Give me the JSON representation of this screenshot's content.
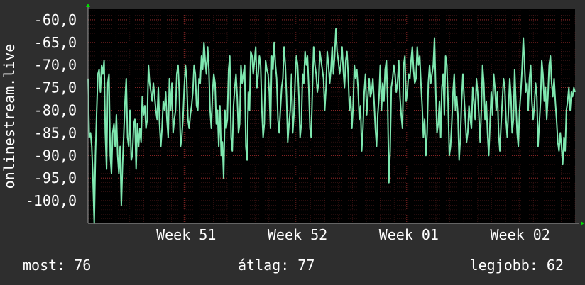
{
  "chart_data": {
    "type": "line",
    "ylabel": "onlinestream.live",
    "ylim": [
      -105,
      -57.5
    ],
    "yticks": [
      -60,
      -65,
      -70,
      -75,
      -80,
      -85,
      -90,
      -95,
      -100
    ],
    "ytick_labels": [
      "-60,0",
      "-65,0",
      "-70,0",
      "-75,0",
      "-80,0",
      "-85,0",
      "-90,0",
      "-95,0",
      "-100,0"
    ],
    "xrange": [
      0,
      35
    ],
    "xticks": [
      {
        "x": 6.9,
        "label": "Week 51"
      },
      {
        "x": 14.9,
        "label": "Week 52"
      },
      {
        "x": 22.9,
        "label": "Week 01"
      },
      {
        "x": 30.9,
        "label": "Week 02"
      }
    ],
    "grid": true,
    "colors": {
      "line": "#7fe8b0",
      "plot_bg": "#000000",
      "grid": "#7a2a2a",
      "axis": "#9a9a9a",
      "arrow": "#00e000"
    },
    "series": [
      {
        "values": [
          -73,
          -86,
          -85,
          -88,
          -95,
          -105,
          -90,
          -80,
          -72,
          -71,
          -76,
          -70,
          -72,
          -69,
          -85,
          -93,
          -74,
          -72,
          -90,
          -94,
          -85,
          -83,
          -88,
          -81,
          -90,
          -94,
          -88,
          -101,
          -92,
          -85,
          -78,
          -73,
          -86,
          -88,
          -80,
          -91,
          -90,
          -83,
          -82,
          -93,
          -83,
          -88,
          -84,
          -87,
          -77,
          -81,
          -79,
          -84,
          -82,
          -70,
          -74,
          -76,
          -78,
          -74,
          -77,
          -80,
          -82,
          -75,
          -83,
          -88,
          -84,
          -78,
          -80,
          -76,
          -82,
          -86,
          -73,
          -80,
          -74,
          -85,
          -82,
          -80,
          -72,
          -70,
          -76,
          -88,
          -86,
          -82,
          -75,
          -70,
          -73,
          -82,
          -84,
          -81,
          -79,
          -76,
          -70,
          -72,
          -79,
          -80,
          -73,
          -74,
          -68,
          -71,
          -65,
          -69,
          -72,
          -66,
          -71,
          -80,
          -84,
          -76,
          -72,
          -74,
          -83,
          -80,
          -88,
          -79,
          -90,
          -87,
          -95,
          -80,
          -84,
          -82,
          -71,
          -68,
          -86,
          -89,
          -79,
          -75,
          -72,
          -77,
          -85,
          -83,
          -70,
          -74,
          -72,
          -70,
          -88,
          -91,
          -76,
          -80,
          -67,
          -68,
          -72,
          -69,
          -66,
          -75,
          -72,
          -68,
          -70,
          -80,
          -86,
          -83,
          -69,
          -71,
          -72,
          -76,
          -84,
          -68,
          -71,
          -65,
          -70,
          -73,
          -82,
          -85,
          -80,
          -75,
          -73,
          -66,
          -70,
          -77,
          -87,
          -83,
          -80,
          -72,
          -85,
          -81,
          -73,
          -68,
          -70,
          -77,
          -86,
          -83,
          -72,
          -74,
          -67,
          -70,
          -68,
          -75,
          -84,
          -86,
          -75,
          -66,
          -70,
          -72,
          -76,
          -74,
          -67,
          -69,
          -71,
          -73,
          -80,
          -75,
          -67,
          -70,
          -74,
          -71,
          -66,
          -72,
          -68,
          -62,
          -67,
          -69,
          -72,
          -70,
          -66,
          -71,
          -75,
          -69,
          -67,
          -72,
          -80,
          -77,
          -84,
          -79,
          -70,
          -73,
          -71,
          -75,
          -82,
          -79,
          -89,
          -84,
          -76,
          -72,
          -81,
          -77,
          -73,
          -77,
          -76,
          -73,
          -78,
          -84,
          -88,
          -81,
          -77,
          -70,
          -80,
          -74,
          -78,
          -71,
          -69,
          -78,
          -96,
          -89,
          -75,
          -73,
          -70,
          -72,
          -76,
          -74,
          -69,
          -77,
          -81,
          -84,
          -70,
          -68,
          -78,
          -76,
          -72,
          -73,
          -69,
          -66,
          -71,
          -74,
          -73,
          -66,
          -70,
          -68,
          -74,
          -79,
          -86,
          -82,
          -90,
          -85,
          -74,
          -70,
          -74,
          -72,
          -70,
          -64,
          -76,
          -85,
          -83,
          -78,
          -86,
          -75,
          -72,
          -81,
          -68,
          -70,
          -78,
          -90,
          -88,
          -83,
          -76,
          -72,
          -80,
          -77,
          -81,
          -91,
          -86,
          -78,
          -72,
          -77,
          -82,
          -87,
          -85,
          -79,
          -82,
          -84,
          -75,
          -78,
          -82,
          -73,
          -76,
          -81,
          -87,
          -80,
          -70,
          -74,
          -82,
          -78,
          -85,
          -90,
          -83,
          -76,
          -81,
          -72,
          -75,
          -80,
          -76,
          -85,
          -89,
          -83,
          -78,
          -73,
          -75,
          -82,
          -86,
          -80,
          -73,
          -77,
          -85,
          -82,
          -71,
          -78,
          -85,
          -88,
          -80,
          -76,
          -71,
          -64,
          -70,
          -76,
          -74,
          -80,
          -73,
          -70,
          -78,
          -82,
          -79,
          -74,
          -77,
          -88,
          -83,
          -78,
          -69,
          -72,
          -78,
          -75,
          -82,
          -77,
          -70,
          -68,
          -74,
          -77,
          -73,
          -78,
          -82,
          -87,
          -89,
          -85,
          -88,
          -92,
          -86,
          -89,
          -80,
          -78,
          -75,
          -80,
          -76,
          -77,
          -75,
          -76
        ]
      }
    ]
  },
  "stats": {
    "now": "most: 76",
    "avg": "átlag: 77",
    "best": "legjobb: 62"
  }
}
